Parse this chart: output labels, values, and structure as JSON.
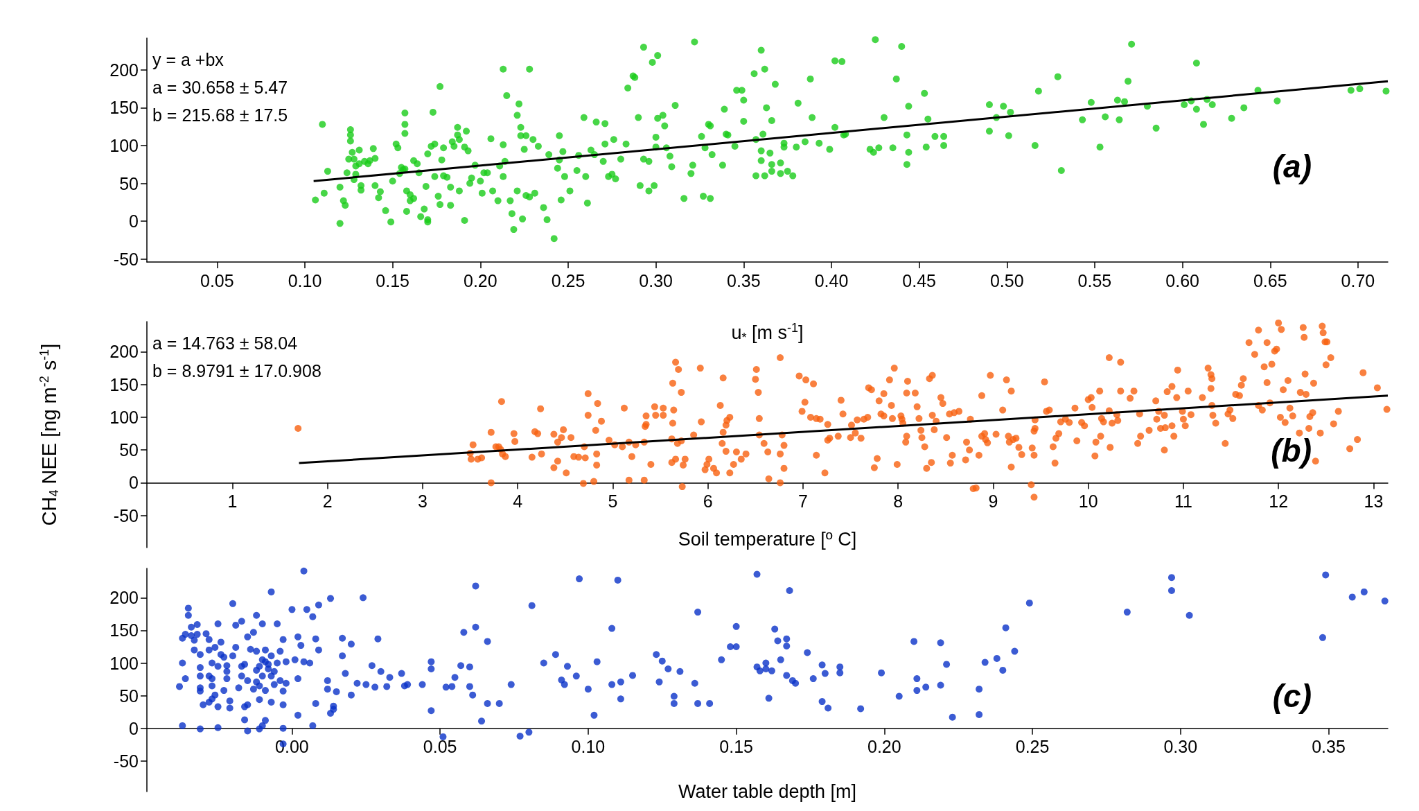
{
  "chart_data": [
    {
      "type": "scatter",
      "xlabel": "u$_{*}$ [m s$^{-1}$]",
      "marker": "circle",
      "grid": false,
      "annotations": [
        "y = a +bx",
        "a = 30.658 ± 5.47",
        "b = 215.68 ± 17.5",
        "(a)"
      ],
      "xlim": [
        0.01,
        0.717
      ],
      "ylim": [
        -54,
        242
      ],
      "xticks": [
        {
          "value": 0.05,
          "label": "0.05"
        },
        {
          "value": 0.1,
          "label": "0.10"
        },
        {
          "value": 0.15,
          "label": "0.15"
        },
        {
          "value": 0.2,
          "label": "0.20"
        },
        {
          "value": 0.25,
          "label": "0.25"
        },
        {
          "value": 0.3,
          "label": "0.30"
        },
        {
          "value": 0.35,
          "label": "0.35"
        },
        {
          "value": 0.4,
          "label": "0.40"
        },
        {
          "value": 0.45,
          "label": "0.45"
        },
        {
          "value": 0.5,
          "label": "0.50"
        },
        {
          "value": 0.55,
          "label": "0.55"
        },
        {
          "value": 0.6,
          "label": "0.60"
        },
        {
          "value": 0.65,
          "label": "0.65"
        },
        {
          "value": 0.7,
          "label": "0.70"
        }
      ],
      "yticks": [
        -50,
        0,
        50,
        100,
        150,
        200
      ],
      "series": [
        {
          "color": "#19cc19",
          "x": [
            0.11,
            0.106,
            0.111,
            0.113,
            0.12,
            0.12,
            0.122,
            0.123,
            0.124,
            0.125,
            0.126,
            0.126,
            0.126,
            0.127,
            0.128,
            0.129,
            0.129,
            0.128,
            0.131,
            0.131,
            0.132,
            0.132,
            0.134,
            0.136,
            0.137,
            0.139,
            0.14,
            0.14,
            0.142,
            0.143,
            0.146,
            0.149,
            0.15,
            0.152,
            0.153,
            0.154,
            0.155,
            0.156,
            0.157,
            0.157,
            0.157,
            0.157,
            0.158,
            0.158,
            0.16,
            0.16,
            0.162,
            0.162,
            0.164,
            0.165,
            0.166,
            0.168,
            0.17,
            0.17,
            0.169,
            0.17,
            0.172,
            0.173,
            0.174,
            0.174,
            0.176,
            0.177,
            0.178,
            0.179,
            0.177,
            0.179,
            0.181,
            0.183,
            0.183,
            0.184,
            0.185,
            0.187,
            0.187,
            0.188,
            0.188,
            0.191,
            0.191,
            0.192,
            0.193,
            0.194,
            0.195,
            0.197,
            0.2,
            0.201,
            0.202,
            0.204,
            0.206,
            0.207,
            0.21,
            0.211,
            0.213,
            0.213,
            0.215,
            0.214,
            0.213,
            0.217,
            0.218,
            0.219,
            0.221,
            0.221,
            0.222,
            0.223,
            0.223,
            0.224,
            0.225,
            0.226,
            0.226,
            0.228,
            0.228,
            0.23,
            0.231,
            0.233,
            0.236,
            0.238,
            0.239,
            0.242,
            0.244,
            0.245,
            0.245,
            0.246,
            0.247,
            0.248,
            0.251,
            0.255,
            0.256,
            0.259,
            0.26,
            0.261,
            0.263,
            0.265,
            0.266,
            0.27,
            0.271,
            0.271,
            0.273,
            0.275,
            0.276,
            0.277,
            0.28,
            0.283,
            0.284,
            0.287,
            0.288,
            0.29,
            0.291,
            0.293,
            0.293,
            0.296,
            0.296,
            0.298,
            0.299,
            0.301,
            0.301,
            0.3,
            0.3,
            0.304,
            0.305,
            0.306,
            0.308,
            0.309,
            0.311,
            0.316,
            0.32,
            0.321,
            0.322,
            0.326,
            0.327,
            0.328,
            0.33,
            0.331,
            0.331,
            0.332,
            0.338,
            0.339,
            0.34,
            0.341,
            0.345,
            0.346,
            0.36,
            0.362,
            0.356,
            0.349,
            0.35,
            0.368,
            0.363,
            0.366,
            0.35,
            0.361,
            0.357,
            0.36,
            0.365,
            0.36,
            0.366,
            0.371,
            0.357,
            0.362,
            0.366,
            0.371,
            0.375,
            0.378,
            0.373,
            0.373,
            0.38,
            0.381,
            0.385,
            0.388,
            0.389,
            0.393,
            0.399,
            0.402,
            0.402,
            0.406,
            0.408,
            0.407,
            0.422,
            0.424,
            0.427,
            0.425,
            0.43,
            0.435,
            0.437,
            0.44,
            0.443,
            0.443,
            0.444,
            0.444,
            0.453,
            0.454,
            0.455,
            0.459,
            0.464,
            0.464,
            0.49,
            0.498,
            0.494,
            0.502,
            0.49,
            0.501,
            0.516,
            0.518,
            0.529,
            0.531,
            0.543,
            0.548,
            0.553,
            0.556,
            0.564,
            0.563,
            0.567,
            0.569,
            0.571,
            0.58,
            0.585,
            0.601,
            0.605,
            0.608,
            0.608,
            0.612,
            0.614,
            0.617,
            0.628,
            0.635,
            0.643,
            0.654,
            0.696,
            0.701,
            0.716
          ],
          "values": [
            128,
            28,
            37,
            66,
            45,
            -3,
            27,
            21,
            64,
            82,
            121,
            114,
            106,
            91,
            82,
            73,
            62,
            55,
            94,
            76,
            41,
            47,
            79,
            76,
            80,
            96,
            83,
            47,
            31,
            39,
            14,
            -1,
            53,
            102,
            97,
            63,
            71,
            68,
            69,
            143,
            128,
            116,
            40,
            13,
            35,
            27,
            30,
            80,
            76,
            64,
            6,
            16,
            2,
            -1,
            46,
            89,
            99,
            144,
            59,
            102,
            33,
            22,
            81,
            97,
            178,
            60,
            58,
            21,
            45,
            105,
            99,
            124,
            114,
            108,
            40,
            1,
            98,
            119,
            93,
            50,
            57,
            74,
            53,
            37,
            64,
            64,
            109,
            40,
            27,
            73,
            101,
            201,
            166,
            79,
            59,
            27,
            10,
            -11,
            40,
            140,
            155,
            124,
            113,
            3,
            95,
            113,
            34,
            201,
            32,
            108,
            37,
            99,
            18,
            2,
            88,
            -23,
            70,
            113,
            81,
            28,
            92,
            59,
            40,
            67,
            87,
            137,
            59,
            24,
            94,
            88,
            131,
            79,
            102,
            129,
            59,
            62,
            108,
            56,
            82,
            102,
            176,
            192,
            190,
            137,
            47,
            230,
            82,
            40,
            79,
            210,
            47,
            136,
            219,
            98,
            111,
            140,
            126,
            97,
            86,
            72,
            153,
            30,
            63,
            74,
            237,
            112,
            33,
            97,
            128,
            30,
            126,
            88,
            74,
            148,
            115,
            114,
            99,
            173,
            226,
            201,
            195,
            173,
            160,
            181,
            150,
            133,
            132,
            115,
            108,
            93,
            90,
            80,
            75,
            77,
            60,
            60,
            66,
            63,
            66,
            60,
            98,
            103,
            98,
            156,
            105,
            188,
            137,
            103,
            95,
            124,
            212,
            211,
            115,
            114,
            95,
            91,
            97,
            240,
            137,
            97,
            188,
            231,
            114,
            75,
            91,
            152,
            169,
            98,
            135,
            112,
            112,
            100,
            154,
            152,
            137,
            144,
            119,
            113,
            100,
            172,
            191,
            67,
            134,
            157,
            98,
            138,
            134,
            160,
            158,
            185,
            234,
            152,
            123,
            154,
            159,
            148,
            209,
            128,
            161,
            154,
            136,
            150,
            173,
            159,
            173,
            175,
            172
          ]
        },
        {
          "type": "line",
          "color": "#000000",
          "marker": "none",
          "x": [
            0.105,
            0.717
          ],
          "values": [
            53,
            185
          ]
        }
      ]
    },
    {
      "type": "scatter",
      "xlabel": "Soil temperature [º C]",
      "ylabel": "CH$_{4}$ NEE [ng m$^{-2}$ s$^{-1}$]",
      "marker": "circle",
      "grid": false,
      "annotations": [
        "a = 14.763 ± 58.04",
        "b = 8.9791 ± 17.0.908",
        "(b)"
      ],
      "xlim": [
        0.1,
        13.15
      ],
      "ylim": [
        -99,
        246
      ],
      "xticks": [
        1,
        2,
        3,
        4,
        5,
        6,
        7,
        8,
        9,
        10,
        11,
        12,
        13
      ],
      "yticks": [
        -50,
        0,
        50,
        100,
        150,
        200
      ],
      "series": [
        {
          "color": "#f7600f",
          "x": [
            1.69,
            3.5,
            3.53,
            3.51,
            3.58,
            3.62,
            3.72,
            3.72,
            3.77,
            3.8,
            3.82,
            3.84,
            3.87,
            3.83,
            3.96,
            3.97,
            4.15,
            4.18,
            4.21,
            4.24,
            4.25,
            4.38,
            4.38,
            4.42,
            4.46,
            4.48,
            4.42,
            4.51,
            4.56,
            4.59,
            4.64,
            4.69,
            4.7,
            4.71,
            4.74,
            4.74,
            4.82,
            4.83,
            4.8,
            4.83,
            4.84,
            4.88,
            4.96,
            5.02,
            5.1,
            5.12,
            5.17,
            5.17,
            5.2,
            5.24,
            5.33,
            5.34,
            5.35,
            5.33,
            5.35,
            5.4,
            5.44,
            5.45,
            5.53,
            5.53,
            5.63,
            5.66,
            5.69,
            5.72,
            5.62,
            5.62,
            5.66,
            5.68,
            5.63,
            5.64,
            5.72,
            5.73,
            5.76,
            5.74,
            5.85,
            5.93,
            5.92,
            5.97,
            6.01,
            5.99,
            6.06,
            6.09,
            6.15,
            6.16,
            6.19,
            6.2,
            6.23,
            6.19,
            6.13,
            6.16,
            6.23,
            6.27,
            6.3,
            6.35,
            6.4,
            6.5,
            6.53,
            6.54,
            6.54,
            6.59,
            6.63,
            6.64,
            6.51,
            6.76,
            6.78,
            6.8,
            6.76,
            6.8,
            6.76,
            6.96,
            7.03,
            7.11,
            6.99,
            7.02,
            7.08,
            7.14,
            7.18,
            7.14,
            7.23,
            7.26,
            7.28,
            7.26,
            7.37,
            7.4,
            7.42,
            7.5,
            7.55,
            7.51,
            7.57,
            7.61,
            7.64,
            7.68,
            7.69,
            7.72,
            7.75,
            7.78,
            7.8,
            7.82,
            7.85,
            7.85,
            7.91,
            7.93,
            7.94,
            7.96,
            7.99,
            8.03,
            8.04,
            8.05,
            8.09,
            8.09,
            8.08,
            8.1,
            8.18,
            8.2,
            8.22,
            8.24,
            8.25,
            8.28,
            8.3,
            8.33,
            8.36,
            8.35,
            8.36,
            8.38,
            8.4,
            8.45,
            8.47,
            8.51,
            8.54,
            8.55,
            8.57,
            8.59,
            8.64,
            8.71,
            8.72,
            8.75,
            8.76,
            8.79,
            8.82,
            8.85,
            8.88,
            8.88,
            8.91,
            8.92,
            8.94,
            8.97,
            9.03,
            9.1,
            9.14,
            9.16,
            9.17,
            9.19,
            9.19,
            9.21,
            9.24,
            9.27,
            9.3,
            9.4,
            9.43,
            9.41,
            9.43,
            9.44,
            9.44,
            9.43,
            9.54,
            9.56,
            9.59,
            9.63,
            9.65,
            9.66,
            9.69,
            9.71,
            9.76,
            9.8,
            9.86,
            9.88,
            9.93,
            9.96,
            10.0,
            10.03,
            10.04,
            10.07,
            10.08,
            10.12,
            10.14,
            10.16,
            10.13,
            10.22,
            10.22,
            10.23,
            10.25,
            10.3,
            10.31,
            10.34,
            10.34,
            10.44,
            10.48,
            10.52,
            10.54,
            10.55,
            10.64,
            10.71,
            10.72,
            10.74,
            10.76,
            10.8,
            10.8,
            10.81,
            10.83,
            10.88,
            10.88,
            10.9,
            10.93,
            10.94,
            10.99,
            11.0,
            11.02,
            11.05,
            11.08,
            11.2,
            11.26,
            11.29,
            11.3,
            11.29,
            11.3,
            11.31,
            11.34,
            11.44,
            11.47,
            11.49,
            11.52,
            11.55,
            11.59,
            11.61,
            11.63,
            11.69,
            11.75,
            11.79,
            11.79,
            11.83,
            11.85,
            11.88,
            11.88,
            11.91,
            11.93,
            11.96,
            11.98,
            12.0,
            12.02,
            12.03,
            12.05,
            12.07,
            12.1,
            12.12,
            12.15,
            12.22,
            12.23,
            12.26,
            12.27,
            12.28,
            12.29,
            12.32,
            12.33,
            12.36,
            12.37,
            12.39,
            12.44,
            12.46,
            12.47,
            12.49,
            12.5,
            12.51,
            12.55,
            12.58,
            12.63,
            12.75,
            12.83,
            12.89,
            13.04,
            13.14
          ],
          "values": [
            83,
            45,
            58,
            36,
            36,
            38,
            77,
            0,
            55,
            55,
            51,
            44,
            40,
            124,
            75,
            63,
            39,
            78,
            75,
            113,
            44,
            74,
            23,
            62,
            69,
            81,
            33,
            15,
            69,
            40,
            39,
            -1,
            55,
            38,
            136,
            103,
            80,
            44,
            2,
            27,
            121,
            94,
            65,
            58,
            55,
            114,
            4,
            62,
            40,
            58,
            62,
            86,
            89,
            4,
            102,
            28,
            116,
            103,
            103,
            114,
            152,
            184,
            173,
            138,
            67,
            31,
            36,
            60,
            91,
            111,
            64,
            -6,
            36,
            27,
            73,
            93,
            175,
            20,
            36,
            28,
            22,
            15,
            60,
            77,
            88,
            95,
            100,
            48,
            118,
            160,
            15,
            28,
            47,
            36,
            44,
            158,
            138,
            98,
            73,
            60,
            47,
            6,
            173,
            191,
            73,
            57,
            44,
            22,
            0,
            163,
            157,
            151,
            109,
            123,
            100,
            98,
            97,
            42,
            15,
            89,
            68,
            65,
            71,
            126,
            105,
            69,
            76,
            88,
            96,
            68,
            97,
            100,
            145,
            142,
            23,
            37,
            125,
            105,
            102,
            136,
            157,
            118,
            98,
            175,
            28,
            102,
            97,
            91,
            137,
            71,
            62,
            155,
            137,
            116,
            98,
            80,
            69,
            55,
            22,
            159,
            164,
            31,
            103,
            81,
            94,
            130,
            121,
            69,
            105,
            30,
            42,
            107,
            109,
            35,
            62,
            50,
            97,
            -9,
            -8,
            42,
            133,
            71,
            75,
            66,
            61,
            164,
            74,
            111,
            157,
            71,
            62,
            140,
            24,
            66,
            68,
            54,
            43,
            -3,
            -22,
            53,
            42,
            83,
            96,
            79,
            154,
            109,
            111,
            55,
            30,
            68,
            75,
            93,
            97,
            92,
            114,
            64,
            92,
            87,
            127,
            130,
            115,
            41,
            62,
            140,
            98,
            93,
            71,
            191,
            110,
            54,
            91,
            104,
            95,
            184,
            140,
            129,
            140,
            60,
            105,
            71,
            80,
            125,
            97,
            109,
            83,
            50,
            103,
            84,
            139,
            147,
            87,
            71,
            130,
            172,
            109,
            97,
            87,
            140,
            104,
            130,
            175,
            165,
            159,
            144,
            118,
            103,
            91,
            60,
            105,
            111,
            98,
            135,
            133,
            149,
            159,
            214,
            196,
            233,
            118,
            111,
            177,
            214,
            153,
            122,
            181,
            201,
            204,
            244,
            100,
            234,
            142,
            92,
            156,
            114,
            102,
            76,
            138,
            237,
            222,
            166,
            135,
            83,
            101,
            107,
            152,
            33,
            76,
            239,
            229,
            215,
            180,
            215,
            191,
            90,
            109,
            52,
            66,
            168,
            145,
            112
          ]
        },
        {
          "type": "line",
          "color": "#000000",
          "marker": "none",
          "x": [
            1.7,
            13.15
          ],
          "values": [
            30,
            133
          ]
        }
      ]
    },
    {
      "type": "scatter",
      "xlabel": "Water table depth [m]",
      "marker": "circle",
      "grid": false,
      "annotations": [
        "(c)"
      ],
      "xlim": [
        -0.049,
        0.37
      ],
      "ylim": [
        -97,
        245
      ],
      "xticks": [
        {
          "value": 0,
          "label": "0.00"
        },
        {
          "value": 0.05,
          "label": "0.05"
        },
        {
          "value": 0.1,
          "label": "0.10"
        },
        {
          "value": 0.15,
          "label": "0.15"
        },
        {
          "value": 0.2,
          "label": "0.20"
        },
        {
          "value": 0.25,
          "label": "0.25"
        },
        {
          "value": 0.3,
          "label": "0.30"
        },
        {
          "value": 0.35,
          "label": "0.35"
        }
      ],
      "yticks": [
        -50,
        0,
        50,
        100,
        150,
        200
      ],
      "series": [
        {
          "color": "#0a32c8",
          "x": [
            -0.038,
            -0.037,
            -0.037,
            -0.037,
            -0.036,
            -0.036,
            -0.035,
            -0.035,
            -0.034,
            -0.033,
            -0.032,
            -0.034,
            -0.033,
            -0.032,
            -0.031,
            -0.031,
            -0.031,
            -0.031,
            -0.031,
            -0.03,
            -0.031,
            -0.029,
            -0.028,
            -0.028,
            -0.028,
            -0.027,
            -0.028,
            -0.027,
            -0.027,
            -0.027,
            -0.026,
            -0.026,
            -0.025,
            -0.025,
            -0.025,
            -0.025,
            -0.024,
            -0.024,
            -0.023,
            -0.023,
            -0.022,
            -0.022,
            -0.022,
            -0.021,
            -0.021,
            -0.02,
            -0.02,
            -0.019,
            -0.019,
            -0.018,
            -0.017,
            -0.017,
            -0.017,
            -0.016,
            -0.016,
            -0.015,
            -0.015,
            -0.015,
            -0.014,
            -0.015,
            -0.016,
            -0.013,
            -0.013,
            -0.012,
            -0.012,
            -0.012,
            -0.012,
            -0.011,
            -0.011,
            -0.011,
            -0.01,
            -0.01,
            -0.01,
            -0.009,
            -0.009,
            -0.011,
            -0.01,
            -0.009,
            -0.009,
            -0.008,
            -0.008,
            -0.007,
            -0.007,
            -0.007,
            -0.007,
            -0.006,
            -0.006,
            -0.005,
            -0.005,
            -0.004,
            -0.004,
            -0.003,
            -0.003,
            -0.003,
            -0.002,
            -0.002,
            -0.003,
            -0.003,
            0.0,
            0.001,
            0.002,
            0.002,
            0.002,
            0.003,
            0.004,
            0.004,
            0.005,
            0.006,
            0.007,
            0.007,
            0.008,
            0.008,
            0.009,
            0.009,
            0.012,
            0.012,
            0.013,
            0.013,
            0.014,
            0.014,
            0.015,
            0.017,
            0.017,
            0.018,
            0.02,
            0.02,
            0.022,
            0.024,
            0.025,
            0.027,
            0.028,
            0.029,
            0.03,
            0.032,
            0.033,
            0.037,
            0.038,
            0.039,
            0.044,
            0.047,
            0.047,
            0.047,
            0.051,
            0.052,
            0.054,
            0.055,
            0.057,
            0.058,
            0.06,
            0.06,
            0.061,
            0.062,
            0.062,
            0.064,
            0.066,
            0.066,
            0.07,
            0.074,
            0.077,
            0.08,
            0.081,
            0.085,
            0.089,
            0.091,
            0.092,
            0.093,
            0.096,
            0.097,
            0.1,
            0.103,
            0.102,
            0.108,
            0.108,
            0.11,
            0.111,
            0.111,
            0.115,
            0.123,
            0.124,
            0.125,
            0.127,
            0.129,
            0.129,
            0.131,
            0.136,
            0.137,
            0.137,
            0.141,
            0.145,
            0.148,
            0.15,
            0.15,
            0.157,
            0.168,
            0.157,
            0.158,
            0.16,
            0.16,
            0.162,
            0.163,
            0.164,
            0.165,
            0.167,
            0.167,
            0.167,
            0.169,
            0.17,
            0.161,
            0.174,
            0.176,
            0.179,
            0.18,
            0.185,
            0.185,
            0.179,
            0.181,
            0.192,
            0.199,
            0.205,
            0.21,
            0.211,
            0.211,
            0.214,
            0.219,
            0.219,
            0.221,
            0.223,
            0.232,
            0.232,
            0.234,
            0.238,
            0.24,
            0.241,
            0.244,
            0.249,
            0.282,
            0.297,
            0.297,
            0.303,
            0.349,
            0.348,
            0.358,
            0.362,
            0.369
          ],
          "values": [
            64,
            100,
            4,
            138,
            144,
            76,
            184,
            173,
            142,
            135,
            144,
            155,
            120,
            159,
            113,
            93,
            80,
            62,
            57,
            36,
            -1,
            145,
            136,
            120,
            80,
            100,
            40,
            45,
            65,
            76,
            51,
            124,
            160,
            33,
            95,
            1,
            132,
            113,
            109,
            58,
            87,
            76,
            96,
            42,
            31,
            111,
            191,
            124,
            158,
            62,
            95,
            80,
            164,
            33,
            98,
            140,
            36,
            73,
            121,
            -4,
            13,
            147,
            60,
            71,
            89,
            173,
            118,
            65,
            95,
            44,
            160,
            80,
            105,
            120,
            58,
            -1,
            4,
            12,
            102,
            91,
            98,
            111,
            80,
            209,
            40,
            67,
            87,
            100,
            160,
            118,
            73,
            36,
            57,
            136,
            102,
            69,
            0,
            -24,
            182,
            105,
            20,
            76,
            140,
            127,
            241,
            102,
            182,
            100,
            171,
            4,
            38,
            137,
            189,
            120,
            73,
            60,
            23,
            199,
            34,
            29,
            56,
            138,
            111,
            84,
            129,
            51,
            69,
            200,
            67,
            96,
            63,
            137,
            87,
            64,
            78,
            84,
            65,
            67,
            67,
            102,
            91,
            27,
            -13,
            63,
            64,
            78,
            96,
            147,
            94,
            64,
            51,
            218,
            155,
            11,
            38,
            133,
            38,
            67,
            -12,
            -6,
            188,
            100,
            113,
            74,
            67,
            95,
            80,
            229,
            60,
            102,
            20,
            153,
            67,
            227,
            71,
            45,
            81,
            113,
            71,
            103,
            91,
            49,
            38,
            87,
            69,
            38,
            178,
            38,
            105,
            125,
            156,
            125,
            236,
            211,
            94,
            88,
            91,
            100,
            88,
            152,
            134,
            105,
            137,
            126,
            81,
            73,
            69,
            46,
            116,
            76,
            97,
            84,
            94,
            85,
            41,
            31,
            30,
            85,
            49,
            133,
            76,
            58,
            63,
            131,
            66,
            98,
            17,
            60,
            21,
            101,
            107,
            89,
            154,
            118,
            192,
            178,
            231,
            211,
            173,
            235,
            139,
            201,
            209,
            195
          ]
        }
      ]
    }
  ]
}
